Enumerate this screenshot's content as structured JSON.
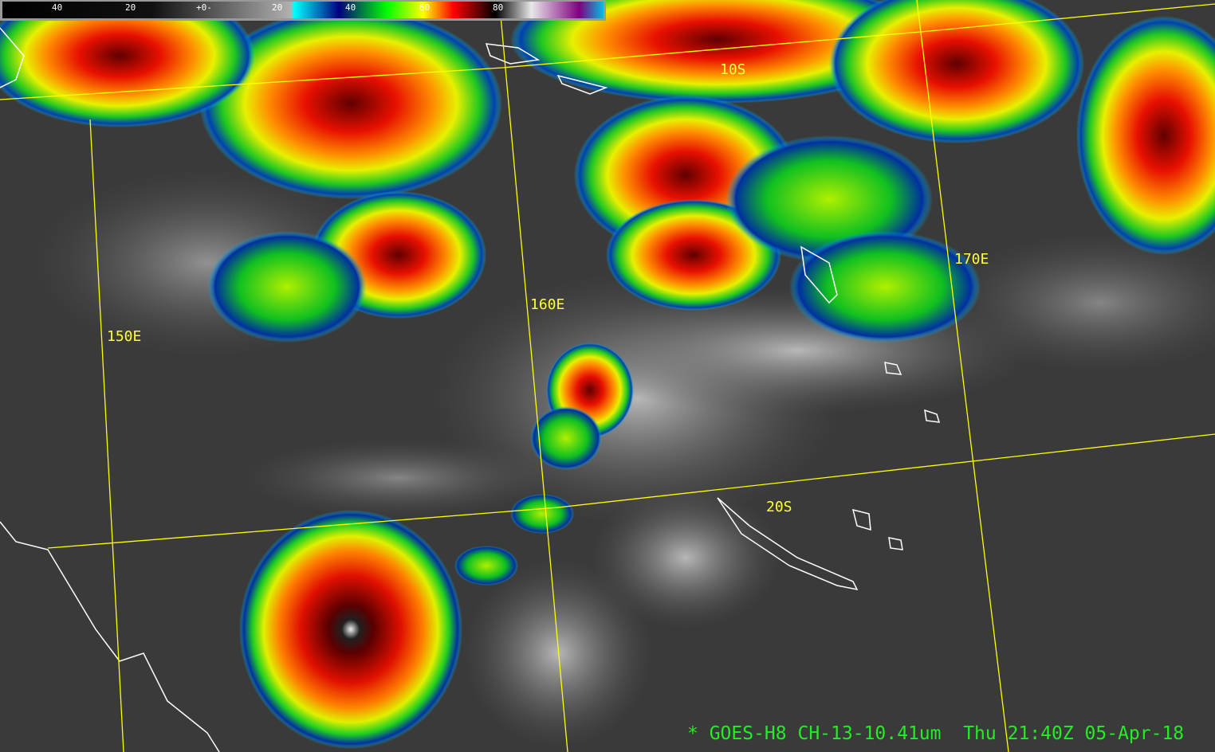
{
  "colorbar": {
    "ticks": [
      "40",
      "20",
      "+0-",
      "20",
      "40",
      "60",
      "80"
    ],
    "colors": [
      "#000000",
      "#ffffff",
      "#a8a8a8",
      "#00ffff",
      "#000080",
      "#00ff00",
      "#ffff00",
      "#ff0000",
      "#000000",
      "#e8e8e8",
      "#800080",
      "#00c0e0"
    ]
  },
  "grid_labels": {
    "lat_10s": "10S",
    "lat_20s": "20S",
    "lon_150e": "150E",
    "lon_160e": "160E",
    "lon_170e": "170E"
  },
  "caption": {
    "satellite": "* GOES-H8 CH-13-10.41um",
    "datetime": "Thu 21:40Z 05-Apr-18"
  },
  "colors": {
    "grid": "#ffff00",
    "caption": "#22ee22",
    "coastline": "#ffffff"
  }
}
